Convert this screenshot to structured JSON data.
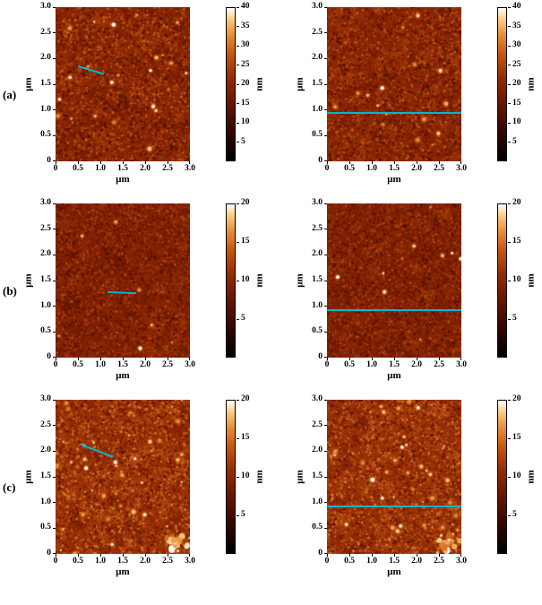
{
  "figure": {
    "line_color": "#00b9c8",
    "axis": {
      "xlabel": "μm",
      "ylabel": "μm",
      "max": 3,
      "tick_values": [
        0,
        0.5,
        1,
        1.5,
        2,
        2.5,
        3
      ],
      "tick_labels": [
        "0",
        "0.5",
        "1.0",
        "1.5",
        "2.0",
        "2.5",
        "3.0"
      ]
    },
    "rows": [
      {
        "label": "(a)",
        "colorbar": {
          "unit": "nm",
          "min": 0,
          "max": 40,
          "tick_values": [
            40,
            35,
            30,
            25,
            20,
            15,
            10,
            5
          ]
        },
        "panels": [
          {
            "id": "a-left",
            "profile_line_um": {
              "x1": 0.5,
              "y1": 1.85,
              "x2": 1.08,
              "y2": 1.7
            },
            "texture": {
              "seed": 101,
              "base": 0.5,
              "spread": 0.5,
              "grain": 5000,
              "dots": 26,
              "cluster": false
            }
          },
          {
            "id": "a-right",
            "profile_line_um": {
              "x1": 0,
              "y1": 0.95,
              "x2": 3,
              "y2": 0.95
            },
            "texture": {
              "seed": 202,
              "base": 0.5,
              "spread": 0.48,
              "grain": 5000,
              "dots": 16,
              "cluster": false
            }
          }
        ]
      },
      {
        "label": "(b)",
        "colorbar": {
          "unit": "nm",
          "min": 0,
          "max": 20,
          "tick_values": [
            20,
            15,
            10,
            5
          ]
        },
        "panels": [
          {
            "id": "b-left",
            "profile_line_um": {
              "x1": 1.15,
              "y1": 1.28,
              "x2": 1.78,
              "y2": 1.26
            },
            "texture": {
              "seed": 303,
              "base": 0.47,
              "spread": 0.4,
              "grain": 5400,
              "dots": 8,
              "cluster": false
            }
          },
          {
            "id": "b-right",
            "profile_line_um": {
              "x1": 0,
              "y1": 0.93,
              "x2": 3,
              "y2": 0.93
            },
            "texture": {
              "seed": 404,
              "base": 0.47,
              "spread": 0.4,
              "grain": 5400,
              "dots": 10,
              "cluster": false
            }
          }
        ]
      },
      {
        "label": "(c)",
        "colorbar": {
          "unit": "nm",
          "min": 0,
          "max": 20,
          "tick_values": [
            20,
            15,
            10,
            5
          ]
        },
        "panels": [
          {
            "id": "c-left",
            "profile_line_um": {
              "x1": 0.55,
              "y1": 2.12,
              "x2": 1.28,
              "y2": 1.88
            },
            "texture": {
              "seed": 505,
              "base": 0.56,
              "spread": 0.52,
              "grain": 5200,
              "dots": 46,
              "cluster": true
            }
          },
          {
            "id": "c-right",
            "profile_line_um": {
              "x1": 0,
              "y1": 0.93,
              "x2": 3,
              "y2": 0.93
            },
            "texture": {
              "seed": 606,
              "base": 0.56,
              "spread": 0.52,
              "grain": 5200,
              "dots": 46,
              "cluster": true
            }
          }
        ]
      }
    ]
  },
  "chart_data": [
    {
      "type": "heatmap",
      "row": "(a)",
      "position": "left",
      "xlabel": "μm",
      "ylabel": "μm",
      "x_range": [
        0,
        3.0
      ],
      "y_range": [
        0,
        3.0
      ],
      "x_ticks": [
        0,
        0.5,
        1.0,
        1.5,
        2.0,
        2.5,
        3.0
      ],
      "y_ticks": [
        0,
        0.5,
        1.0,
        1.5,
        2.0,
        2.5,
        3.0
      ],
      "colorbar": {
        "label": "nm",
        "range": [
          0,
          40
        ],
        "ticks": [
          5,
          10,
          15,
          20,
          25,
          30,
          35,
          40
        ]
      },
      "profile_line_um": [
        [
          0.5,
          1.85
        ],
        [
          1.08,
          1.7
        ]
      ]
    },
    {
      "type": "heatmap",
      "row": "(a)",
      "position": "right",
      "xlabel": "μm",
      "ylabel": "μm",
      "x_range": [
        0,
        3.0
      ],
      "y_range": [
        0,
        3.0
      ],
      "x_ticks": [
        0,
        0.5,
        1.0,
        1.5,
        2.0,
        2.5,
        3.0
      ],
      "y_ticks": [
        0,
        0.5,
        1.0,
        1.5,
        2.0,
        2.5,
        3.0
      ],
      "colorbar": {
        "label": "nm",
        "range": [
          0,
          40
        ],
        "ticks": [
          5,
          10,
          15,
          20,
          25,
          30,
          35,
          40
        ]
      },
      "profile_line_um": [
        [
          0,
          0.95
        ],
        [
          3.0,
          0.95
        ]
      ]
    },
    {
      "type": "heatmap",
      "row": "(b)",
      "position": "left",
      "xlabel": "μm",
      "ylabel": "μm",
      "x_range": [
        0,
        3.0
      ],
      "y_range": [
        0,
        3.0
      ],
      "x_ticks": [
        0,
        0.5,
        1.0,
        1.5,
        2.0,
        2.5,
        3.0
      ],
      "y_ticks": [
        0,
        0.5,
        1.0,
        1.5,
        2.0,
        2.5,
        3.0
      ],
      "colorbar": {
        "label": "nm",
        "range": [
          0,
          20
        ],
        "ticks": [
          5,
          10,
          15,
          20
        ]
      },
      "profile_line_um": [
        [
          1.15,
          1.28
        ],
        [
          1.78,
          1.26
        ]
      ]
    },
    {
      "type": "heatmap",
      "row": "(b)",
      "position": "right",
      "xlabel": "μm",
      "ylabel": "μm",
      "x_range": [
        0,
        3.0
      ],
      "y_range": [
        0,
        3.0
      ],
      "x_ticks": [
        0,
        0.5,
        1.0,
        1.5,
        2.0,
        2.5,
        3.0
      ],
      "y_ticks": [
        0,
        0.5,
        1.0,
        1.5,
        2.0,
        2.5,
        3.0
      ],
      "colorbar": {
        "label": "nm",
        "range": [
          0,
          20
        ],
        "ticks": [
          5,
          10,
          15,
          20
        ]
      },
      "profile_line_um": [
        [
          0,
          0.93
        ],
        [
          3.0,
          0.93
        ]
      ]
    },
    {
      "type": "heatmap",
      "row": "(c)",
      "position": "left",
      "xlabel": "μm",
      "ylabel": "μm",
      "x_range": [
        0,
        3.0
      ],
      "y_range": [
        0,
        3.0
      ],
      "x_ticks": [
        0,
        0.5,
        1.0,
        1.5,
        2.0,
        2.5,
        3.0
      ],
      "y_ticks": [
        0,
        0.5,
        1.0,
        1.5,
        2.0,
        2.5,
        3.0
      ],
      "colorbar": {
        "label": "nm",
        "range": [
          0,
          20
        ],
        "ticks": [
          5,
          10,
          15,
          20
        ]
      },
      "profile_line_um": [
        [
          0.55,
          2.12
        ],
        [
          1.28,
          1.88
        ]
      ]
    },
    {
      "type": "heatmap",
      "row": "(c)",
      "position": "right",
      "xlabel": "μm",
      "ylabel": "μm",
      "x_range": [
        0,
        3.0
      ],
      "y_range": [
        0,
        3.0
      ],
      "x_ticks": [
        0,
        0.5,
        1.0,
        1.5,
        2.0,
        2.5,
        3.0
      ],
      "y_ticks": [
        0,
        0.5,
        1.0,
        1.5,
        2.0,
        2.5,
        3.0
      ],
      "colorbar": {
        "label": "nm",
        "range": [
          0,
          20
        ],
        "ticks": [
          5,
          10,
          15,
          20
        ]
      },
      "profile_line_um": [
        [
          0,
          0.93
        ],
        [
          3.0,
          0.93
        ]
      ]
    }
  ]
}
